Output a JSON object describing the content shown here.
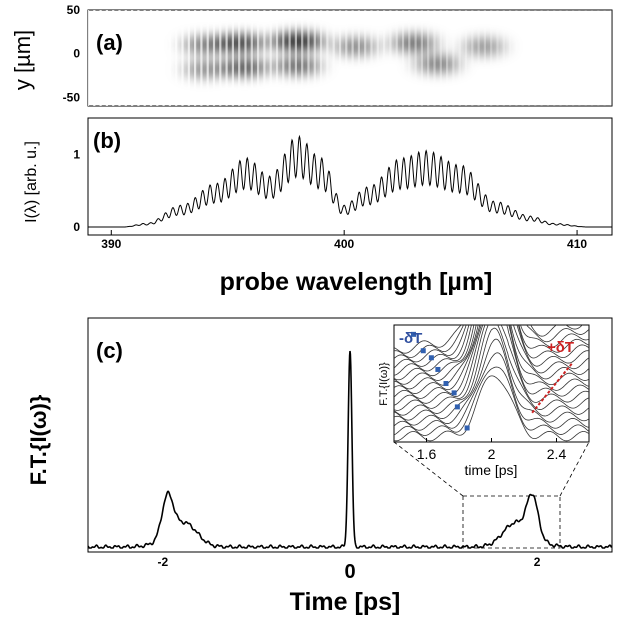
{
  "chart_data": [
    {
      "panel": "(a)",
      "type": "heatmap",
      "ylabel": "y [µm]",
      "yticks": [
        "50",
        "0",
        "-50"
      ],
      "ylim": [
        -60,
        50
      ],
      "xlim": [
        389,
        411.5
      ],
      "description_colormap": "grayscale",
      "blobs": [
        {
          "x": 394.0,
          "y": 10,
          "v": 0.45
        },
        {
          "x": 394.0,
          "y": -18,
          "v": 0.35
        },
        {
          "x": 395.5,
          "y": 12,
          "v": 0.85
        },
        {
          "x": 395.7,
          "y": -16,
          "v": 0.7
        },
        {
          "x": 398.0,
          "y": 14,
          "v": 1.0
        },
        {
          "x": 398.0,
          "y": -14,
          "v": 0.6
        },
        {
          "x": 400.5,
          "y": 8,
          "v": 0.4
        },
        {
          "x": 403.0,
          "y": 12,
          "v": 0.55
        },
        {
          "x": 404.0,
          "y": -12,
          "v": 0.45
        },
        {
          "x": 406.0,
          "y": 8,
          "v": 0.3
        }
      ]
    },
    {
      "panel": "(b)",
      "type": "line",
      "ylabel": "I(λ) [arb. u.]",
      "xlabel": "probe wavelength [µm]",
      "xticks": [
        390,
        400,
        410
      ],
      "yticks": [
        0,
        1
      ],
      "xlim": [
        389,
        411.5
      ],
      "ylim": [
        0,
        1.5
      ],
      "fringe_period": 0.32,
      "envelope": [
        {
          "x": 390.5,
          "y": 0.0
        },
        {
          "x": 391.5,
          "y": 0.05
        },
        {
          "x": 393.0,
          "y": 0.3
        },
        {
          "x": 394.5,
          "y": 0.6
        },
        {
          "x": 395.8,
          "y": 0.95
        },
        {
          "x": 396.8,
          "y": 0.7
        },
        {
          "x": 398.0,
          "y": 1.25
        },
        {
          "x": 399.0,
          "y": 0.95
        },
        {
          "x": 400.0,
          "y": 0.3
        },
        {
          "x": 401.0,
          "y": 0.55
        },
        {
          "x": 402.5,
          "y": 0.95
        },
        {
          "x": 403.5,
          "y": 1.05
        },
        {
          "x": 405.0,
          "y": 0.85
        },
        {
          "x": 406.5,
          "y": 0.35
        },
        {
          "x": 408.0,
          "y": 0.15
        },
        {
          "x": 409.0,
          "y": 0.05
        },
        {
          "x": 410.5,
          "y": 0.0
        }
      ]
    },
    {
      "panel": "(c)",
      "type": "line",
      "ylabel": "F.T.{I(ω)}",
      "xlabel": "Time [ps]",
      "xticks": [
        -2,
        0,
        2
      ],
      "xlim": [
        -2.8,
        2.8
      ],
      "peaks": [
        {
          "x": 0.0,
          "height": 1.0,
          "width": 0.02
        },
        {
          "x": -1.95,
          "height": 0.21,
          "width": 0.06
        },
        {
          "x": 1.95,
          "height": 0.21,
          "width": 0.06
        },
        {
          "x": -1.75,
          "height": 0.08,
          "width": 0.12
        },
        {
          "x": 1.75,
          "height": 0.08,
          "width": 0.12
        }
      ],
      "inset": {
        "ylabel": "F.T.{I(ω)}",
        "xlabel": "time [ps]",
        "xticks": [
          1.6,
          2,
          2.4
        ],
        "xlim": [
          1.4,
          2.6
        ],
        "annotations": [
          {
            "text": "-δT",
            "color": "#3050a0"
          },
          {
            "text": "+δT",
            "color": "#cc2222"
          }
        ],
        "curves": 18,
        "blue_markers": [
          {
            "x": 1.52,
            "y": 0.92
          },
          {
            "x": 1.58,
            "y": 0.78
          },
          {
            "x": 1.63,
            "y": 0.72
          },
          {
            "x": 1.67,
            "y": 0.62
          },
          {
            "x": 1.72,
            "y": 0.5
          },
          {
            "x": 1.77,
            "y": 0.42
          },
          {
            "x": 1.79,
            "y": 0.3
          },
          {
            "x": 1.85,
            "y": 0.12
          }
        ],
        "red_trend": [
          {
            "x": 2.25,
            "y": 0.25
          },
          {
            "x": 2.5,
            "y": 0.68
          }
        ]
      }
    }
  ]
}
